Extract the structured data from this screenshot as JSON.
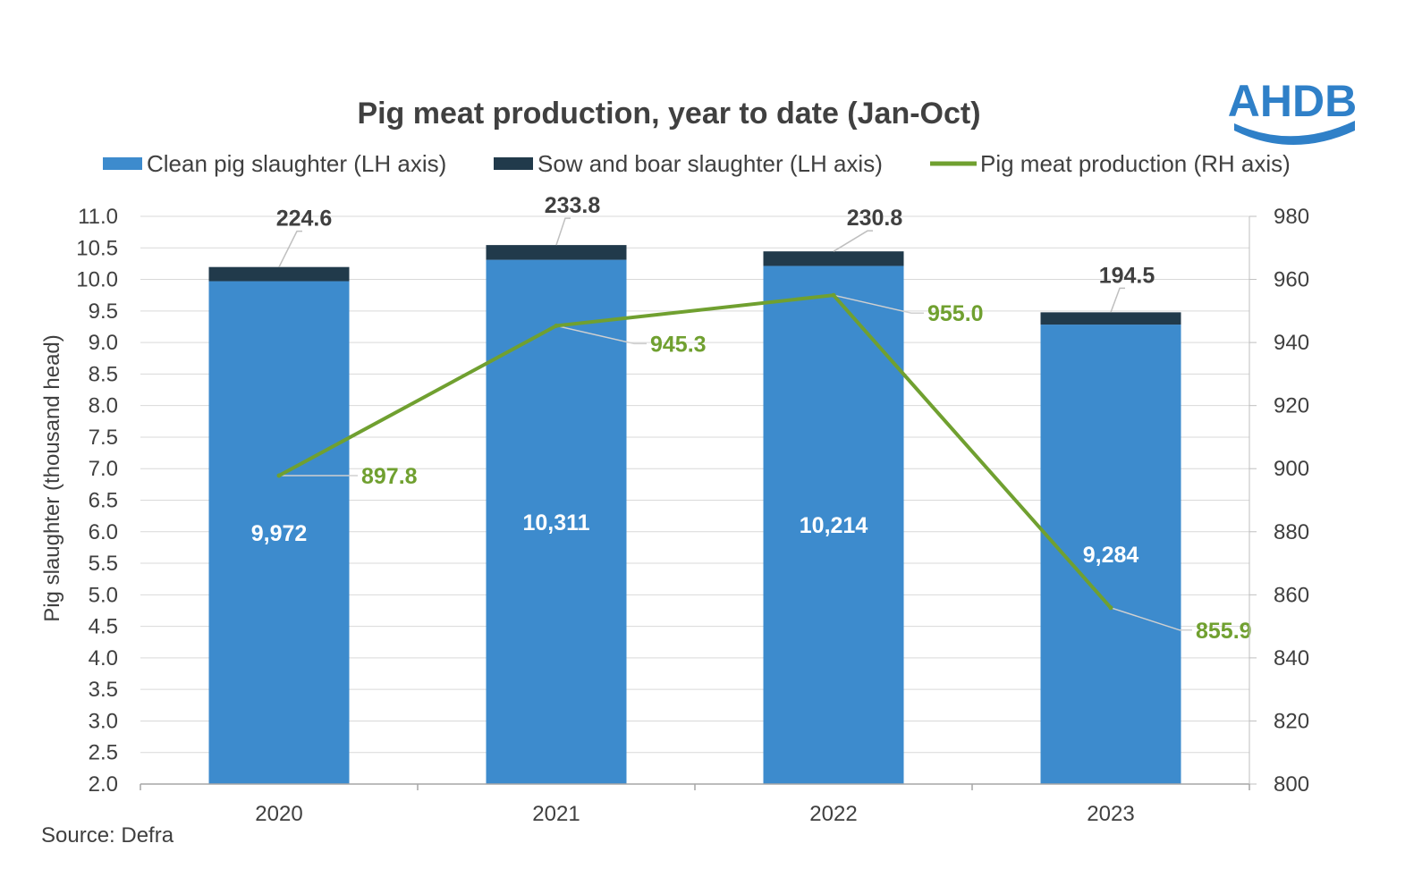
{
  "chart_data": {
    "type": "bar",
    "title": "Pig meat production, year to date (Jan-Oct)",
    "categories": [
      "2020",
      "2021",
      "2022",
      "2023"
    ],
    "series": [
      {
        "name": "Clean pig slaughter (LH axis)",
        "kind": "stacked-bar",
        "axis": "left",
        "values": [
          9.972,
          10.311,
          10.214,
          9.284
        ],
        "labels": [
          "9,972",
          "10,311",
          "10,214",
          "9,284"
        ],
        "color": "#3d8bcd"
      },
      {
        "name": "Sow and boar slaughter (LH axis)",
        "kind": "stacked-bar",
        "axis": "left",
        "values": [
          0.2246,
          0.2338,
          0.2308,
          0.1945
        ],
        "labels": [
          "224.6",
          "233.8",
          "230.8",
          "194.5"
        ],
        "color": "#213a4b"
      },
      {
        "name": "Pig meat production (RH axis)",
        "kind": "line",
        "axis": "right",
        "values": [
          897.8,
          945.3,
          955.0,
          855.9
        ],
        "labels": [
          "897.8",
          "945.3",
          "955.0",
          "855.9"
        ],
        "color": "#70a030"
      }
    ],
    "left_axis": {
      "label": "Pig slaughter (thousand head)",
      "ylim": [
        2.0,
        11.0
      ],
      "ticks": [
        "2.0",
        "2.5",
        "3.0",
        "3.5",
        "4.0",
        "4.5",
        "5.0",
        "5.5",
        "6.0",
        "6.5",
        "7.0",
        "7.5",
        "8.0",
        "8.5",
        "9.0",
        "9.5",
        "10.0",
        "10.5",
        "11.0"
      ]
    },
    "right_axis": {
      "label": "",
      "ylim": [
        800,
        980
      ],
      "ticks": [
        "800",
        "820",
        "840",
        "860",
        "880",
        "900",
        "920",
        "940",
        "960",
        "980"
      ]
    },
    "grid": true,
    "legend_position": "top"
  },
  "source": "Source: Defra",
  "logo": {
    "text": "AHDB",
    "color": "#2f80c8"
  }
}
